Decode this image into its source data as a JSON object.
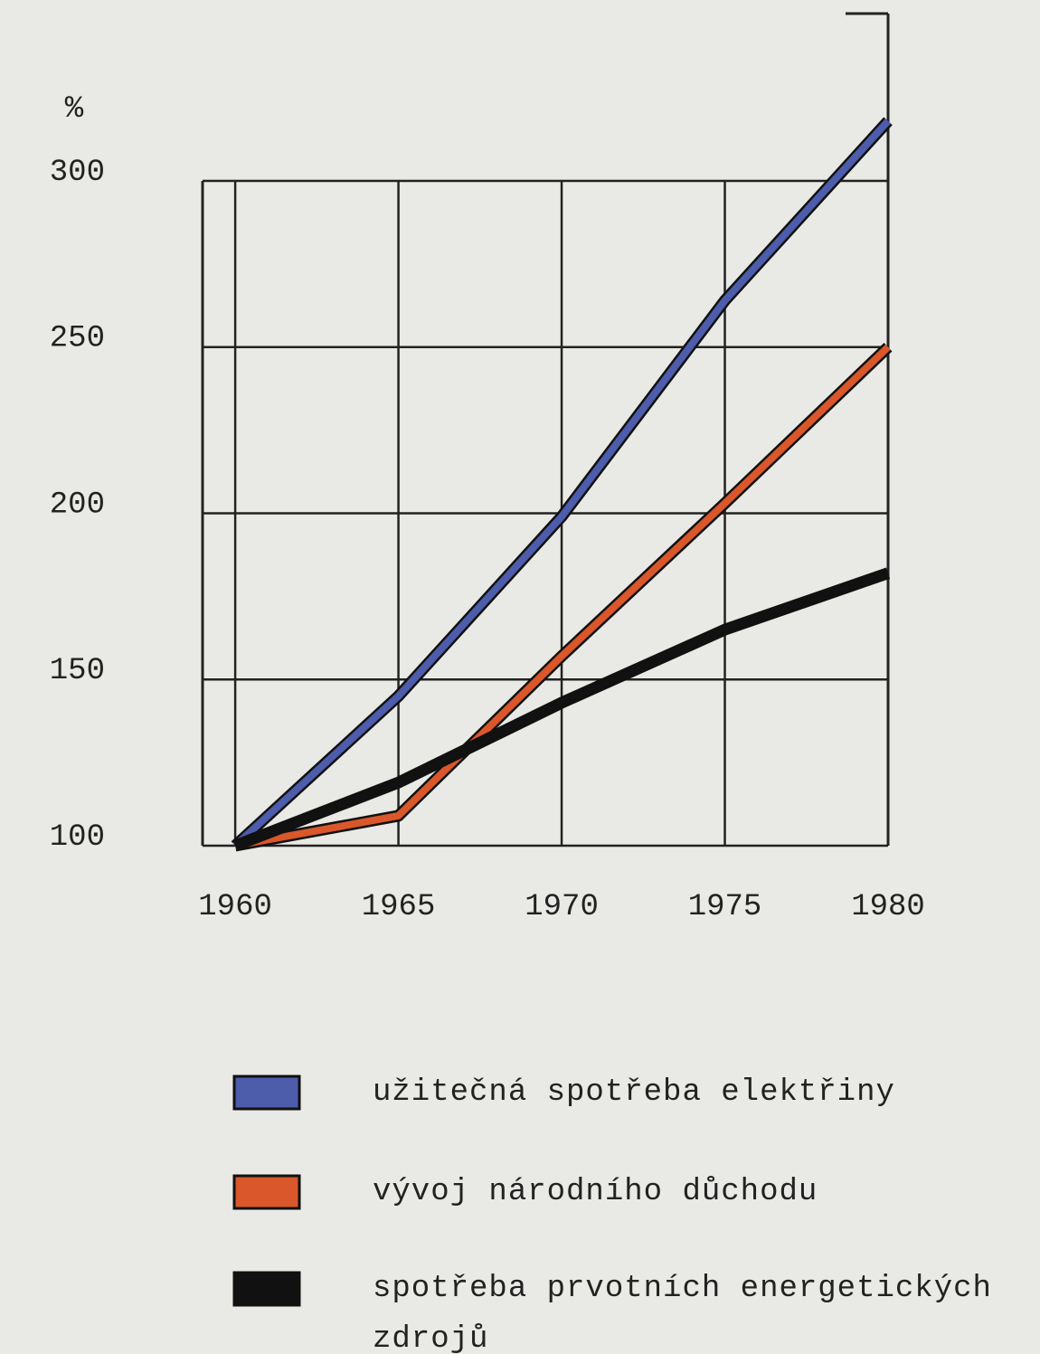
{
  "chart_data": {
    "type": "line",
    "y_label": "%",
    "x": [
      1960,
      1965,
      1970,
      1975,
      1980
    ],
    "xlim": [
      1959,
      1980
    ],
    "xticks": [
      1960,
      1965,
      1970,
      1975,
      1980
    ],
    "ylim": [
      100,
      300
    ],
    "yticks": [
      100,
      150,
      200,
      250,
      300
    ],
    "grid": true,
    "series": [
      {
        "name": "užitečná spotřeba elektřiny",
        "color": "#4d5cab",
        "values": [
          100,
          145,
          199,
          264,
          318
        ]
      },
      {
        "name": "vývoj národního důchodu",
        "color": "#d9572a",
        "values": [
          100,
          109,
          157,
          203,
          250
        ]
      },
      {
        "name": "spotřeba prvotních energetických zdrojů",
        "color": "#111111",
        "values": [
          100,
          119,
          143,
          165,
          182
        ]
      }
    ]
  }
}
